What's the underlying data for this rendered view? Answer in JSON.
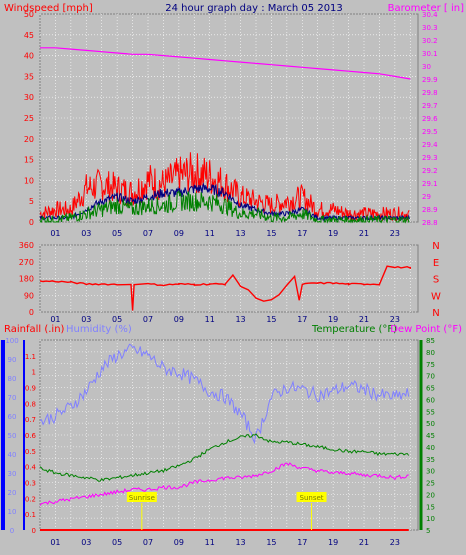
{
  "title": "24 hour graph day : March 05 2013",
  "colors": {
    "background": "#c0c0c0",
    "grid": "#ffffff",
    "wind": "#ff0000",
    "wind_avg": "#000080",
    "gust_base": "#008000",
    "barometer": "#ff00ff",
    "direction": "#ff0000",
    "rain": "#ff0000",
    "humidity": "#8080ff",
    "temperature": "#008000",
    "dewpoint": "#ff00ff",
    "axis_blue": "#0000ff",
    "flag": "#ffff00"
  },
  "hour_ticks": [
    "01",
    "03",
    "05",
    "07",
    "09",
    "11",
    "13",
    "15",
    "17",
    "19",
    "21",
    "23"
  ],
  "top_panel": {
    "left_title": "Windspeed [mph]",
    "right_title": "Barometer [ in]",
    "left_ticks": [
      "0",
      "5",
      "10",
      "15",
      "20",
      "25",
      "30",
      "35",
      "40",
      "45",
      "50"
    ],
    "right_ticks": [
      "28.8",
      "28.9",
      "29",
      "29.1",
      "29.2",
      "29.3",
      "29.4",
      "29.5",
      "29.6",
      "29.7",
      "29.8",
      "29.9",
      "30",
      "30.1",
      "30.2",
      "30.3",
      "30.4"
    ]
  },
  "dir_panel": {
    "left_ticks": [
      "0",
      "90",
      "180",
      "270",
      "360"
    ],
    "compass": [
      "N",
      "W",
      "S",
      "E",
      "N"
    ]
  },
  "bottom_panel": {
    "rain_title": "Rainfall (.in)",
    "humidity_title": "Humidity (%)",
    "temp_title": "Temperature (°F)",
    "dew_title": "Dew Point (°F)",
    "humidity_ticks": [
      "0",
      "10",
      "20",
      "30",
      "40",
      "50",
      "60",
      "70",
      "80",
      "90",
      "100"
    ],
    "rain_ticks": [
      "0",
      "0.1",
      "0.2",
      "0.3",
      "0.4",
      "0.5",
      "0.6",
      "0.7",
      "0.8",
      "0.9",
      "1",
      "1.1"
    ],
    "temp_ticks": [
      "5",
      "10",
      "15",
      "20",
      "25",
      "30",
      "35",
      "40",
      "45",
      "50",
      "55",
      "60",
      "65",
      "70",
      "75",
      "80",
      "85"
    ],
    "flags": [
      {
        "hour": 6.6,
        "label": "Sunrise"
      },
      {
        "hour": 17.6,
        "label": "Sunset"
      }
    ]
  },
  "chart_data": [
    {
      "type": "line",
      "title": "24 hour graph day : March 05 2013",
      "x_unit": "hour",
      "xlim": [
        0,
        24.5
      ],
      "ylabel": "Windspeed [mph]",
      "ylim": [
        0,
        50
      ],
      "y2label": "Barometer [ in]",
      "y2lim": [
        28.8,
        30.4
      ],
      "series": [
        {
          "name": "",
          "role": "wind gust",
          "axis": "left",
          "x": [
            0,
            1,
            2,
            3,
            4,
            5,
            6,
            7,
            8,
            9,
            10,
            11,
            12,
            13,
            14,
            15,
            16,
            17,
            18,
            19,
            20,
            21,
            22,
            23,
            24
          ],
          "y": [
            2,
            3,
            3,
            8,
            9,
            8,
            7,
            10,
            9,
            11,
            12,
            11,
            9,
            6,
            5,
            4,
            5,
            6,
            3,
            3,
            2,
            2,
            2,
            2,
            2
          ]
        },
        {
          "name": "",
          "role": "wind average",
          "axis": "left",
          "x": [
            0,
            1,
            2,
            3,
            4,
            5,
            6,
            7,
            8,
            9,
            10,
            11,
            12,
            13,
            14,
            15,
            16,
            17,
            18,
            19,
            20,
            21,
            22,
            23,
            24
          ],
          "y": [
            1,
            1,
            1,
            3,
            5,
            6,
            5,
            6,
            7,
            7,
            8,
            8,
            7,
            4,
            3,
            2,
            2,
            3,
            1,
            1,
            1,
            1,
            1,
            1,
            1
          ]
        },
        {
          "name": "",
          "role": "wind speed",
          "axis": "left",
          "x": [
            0,
            1,
            2,
            3,
            4,
            5,
            6,
            7,
            8,
            9,
            10,
            11,
            12,
            13,
            14,
            15,
            16,
            17,
            18,
            19,
            20,
            21,
            22,
            23,
            24
          ],
          "y": [
            0.5,
            0.5,
            1,
            2,
            3,
            4,
            3,
            4,
            4,
            5,
            5,
            5,
            4,
            2,
            2,
            1,
            1,
            2,
            0.5,
            0.5,
            0.5,
            0.5,
            0.5,
            0.5,
            0.5
          ]
        },
        {
          "name": "",
          "role": "barometer",
          "axis": "right",
          "x": [
            0,
            1,
            2,
            3,
            4,
            5,
            6,
            7,
            8,
            9,
            10,
            11,
            12,
            13,
            14,
            15,
            16,
            17,
            18,
            19,
            20,
            21,
            22,
            23,
            24
          ],
          "y": [
            30.14,
            30.14,
            30.13,
            30.12,
            30.11,
            30.1,
            30.09,
            30.09,
            30.08,
            30.07,
            30.06,
            30.05,
            30.04,
            30.03,
            30.02,
            30.01,
            30.0,
            29.99,
            29.98,
            29.97,
            29.96,
            29.95,
            29.94,
            29.92,
            29.9
          ]
        }
      ]
    },
    {
      "type": "line",
      "x_unit": "hour",
      "xlim": [
        0,
        24.5
      ],
      "ylim": [
        0,
        360
      ],
      "series": [
        {
          "name": "",
          "role": "wind direction",
          "x": [
            0,
            1,
            2,
            3,
            4,
            5,
            5.9,
            6,
            6.1,
            7,
            8,
            9,
            10,
            11,
            12,
            12.5,
            13,
            13.5,
            14,
            14.5,
            15,
            15.5,
            16,
            16.5,
            16.8,
            17,
            18,
            19,
            20,
            21,
            22,
            22.5,
            23,
            24
          ],
          "y": [
            165,
            165,
            160,
            150,
            150,
            148,
            148,
            10,
            150,
            150,
            145,
            150,
            148,
            150,
            150,
            195,
            140,
            120,
            75,
            55,
            70,
            95,
            145,
            190,
            60,
            150,
            155,
            155,
            150,
            150,
            150,
            245,
            240,
            240
          ]
        }
      ]
    },
    {
      "type": "line",
      "x_unit": "hour",
      "xlim": [
        0,
        24.5
      ],
      "ylabel": "Humidity (%)",
      "ylim": [
        0,
        100
      ],
      "y2label": "Temperature (°F)",
      "y2lim": [
        5,
        85
      ],
      "series": [
        {
          "name": "Rainfall (.in)",
          "axis": "rain",
          "unit": "in",
          "x": [
            0,
            24
          ],
          "y": [
            0,
            0
          ]
        },
        {
          "name": "Humidity (%)",
          "axis": "left",
          "x": [
            0,
            1,
            2,
            3,
            4,
            5,
            6,
            7,
            8,
            9,
            10,
            11,
            12,
            13,
            14,
            15,
            16,
            17,
            18,
            19,
            20,
            21,
            22,
            23,
            24
          ],
          "y": [
            57,
            60,
            65,
            73,
            85,
            92,
            95,
            92,
            85,
            83,
            79,
            73,
            70,
            61,
            48,
            70,
            75,
            74,
            71,
            73,
            76,
            74,
            71,
            70,
            72
          ]
        },
        {
          "name": "Temperature (°F)",
          "axis": "right",
          "x": [
            0,
            1,
            2,
            3,
            4,
            5,
            6,
            7,
            8,
            9,
            10,
            11,
            12,
            13,
            14,
            15,
            16,
            17,
            18,
            19,
            20,
            21,
            22,
            23,
            24
          ],
          "y": [
            31,
            29,
            28,
            27,
            26,
            27,
            28,
            29,
            30,
            32,
            35,
            39,
            42,
            44,
            45,
            42,
            42,
            41,
            40,
            39,
            38,
            38,
            37,
            37,
            37
          ]
        },
        {
          "name": "Dew Point (°F)",
          "axis": "right",
          "x": [
            0,
            1,
            2,
            3,
            4,
            5,
            6,
            7,
            8,
            9,
            10,
            11,
            12,
            13,
            14,
            15,
            16,
            17,
            18,
            19,
            20,
            21,
            22,
            23,
            24
          ],
          "y": [
            16,
            17,
            18,
            19,
            20,
            21,
            22,
            22,
            23,
            23,
            25,
            26,
            27,
            27,
            28,
            30,
            33,
            31,
            30,
            29,
            29,
            28,
            28,
            27,
            28
          ]
        }
      ]
    }
  ]
}
